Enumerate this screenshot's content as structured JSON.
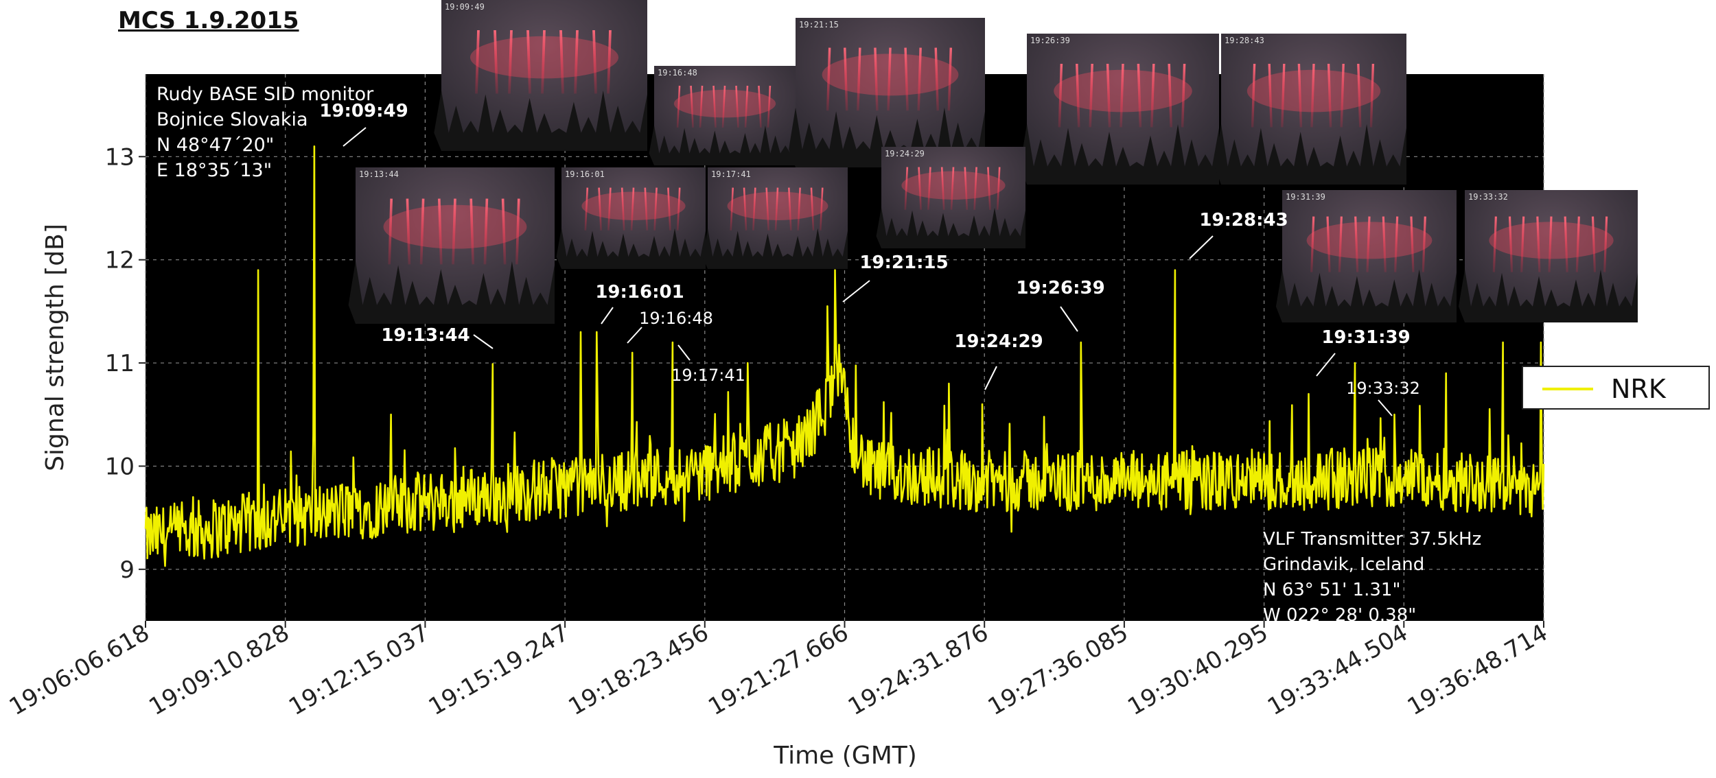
{
  "page_title": "MCS 1.9.2015",
  "chart_data": {
    "type": "line",
    "xlabel": "Time (GMT)",
    "ylabel": "Signal strength [dB]",
    "ylim": [
      8.5,
      13.8
    ],
    "yticks": [
      9,
      10,
      11,
      12,
      13
    ],
    "x_range": [
      "19:06:06.618",
      "19:36:48.714"
    ],
    "xticks": [
      "19:06:06.618",
      "19:09:10.828",
      "19:12:15.037",
      "19:15:19.247",
      "19:18:23.456",
      "19:21:27.666",
      "19:24:31.876",
      "19:27:36.085",
      "19:30:40.295",
      "19:33:44.504",
      "19:36:48.714"
    ],
    "grid": true,
    "legend_position": "right",
    "background": "#000000",
    "series": [
      {
        "name": "NRK",
        "color": "#f0f000",
        "baseline": [
          [
            "19:06:06.618",
            9.3
          ],
          [
            "19:09:10.828",
            9.5
          ],
          [
            "19:12:15.037",
            9.65
          ],
          [
            "19:15:19.247",
            9.8
          ],
          [
            "19:18:23.456",
            9.95
          ],
          [
            "19:20:30.000",
            10.2
          ],
          [
            "19:21:00.000",
            10.55
          ],
          [
            "19:21:20.000",
            10.9
          ],
          [
            "19:21:40.000",
            10.2
          ],
          [
            "19:22:00.000",
            9.95
          ],
          [
            "19:24:31.876",
            9.85
          ],
          [
            "19:27:36.085",
            9.85
          ],
          [
            "19:30:40.295",
            9.85
          ],
          [
            "19:33:44.504",
            9.9
          ],
          [
            "19:36:48.714",
            9.8
          ]
        ],
        "noise_amplitude": 0.3,
        "spikes": [
          [
            "19:09:49",
            13.1
          ],
          [
            "19:08:35",
            11.9
          ],
          [
            "19:13:44",
            10.99
          ],
          [
            "19:16:01",
            11.3
          ],
          [
            "19:16:48",
            11.1
          ],
          [
            "19:17:41",
            11.2
          ],
          [
            "19:15:40",
            11.3
          ],
          [
            "19:21:15",
            11.9
          ],
          [
            "19:21:05",
            11.55
          ],
          [
            "19:24:29",
            10.6
          ],
          [
            "19:23:45",
            10.8
          ],
          [
            "19:26:39",
            11.2
          ],
          [
            "19:28:43",
            11.9
          ],
          [
            "19:31:39",
            10.7
          ],
          [
            "19:33:32",
            10.5
          ],
          [
            "19:35:55",
            11.2
          ],
          [
            "19:36:45",
            11.2
          ],
          [
            "19:32:40",
            11.0
          ],
          [
            "19:34:40",
            10.9
          ],
          [
            "19:11:30",
            10.5
          ],
          [
            "19:19:20",
            11.0
          ]
        ]
      }
    ]
  },
  "station_info": {
    "lines": [
      "Rudy BASE SID monitor",
      "Bojnice Slovakia",
      "N 48°47´20\"",
      "E 18°35´13\""
    ]
  },
  "transmitter_info": {
    "lines": [
      "VLF Transmitter 37.5kHz",
      "Grindavik, Iceland",
      "N 63° 51' 1.31\"",
      "W 022° 28' 0.38\""
    ]
  },
  "event_labels": [
    {
      "text": "19:09:49",
      "time": "19:09:49",
      "style": "bold"
    },
    {
      "text": "19:13:44",
      "time": "19:13:44",
      "style": "bold"
    },
    {
      "text": "19:16:01",
      "time": "19:16:01",
      "style": "bold"
    },
    {
      "text": "19:16:48",
      "time": "19:16:48",
      "style": "normal"
    },
    {
      "text": "19:17:41",
      "time": "19:17:41",
      "style": "normal"
    },
    {
      "text": "19:21:15",
      "time": "19:21:15",
      "style": "bold"
    },
    {
      "text": "19:24:29",
      "time": "19:24:29",
      "style": "bold"
    },
    {
      "text": "19:26:39",
      "time": "19:26:39",
      "style": "bold"
    },
    {
      "text": "19:28:43",
      "time": "19:28:43",
      "style": "bold"
    },
    {
      "text": "19:31:39",
      "time": "19:31:39",
      "style": "bold"
    },
    {
      "text": "19:33:32",
      "time": "19:33:32",
      "style": "normal"
    }
  ],
  "photo_timestamps": [
    "19:09:49",
    "19:16:48",
    "19:21:15",
    "19:26:39",
    "19:28:43",
    "19:13:44",
    "19:16:01",
    "19:17:41",
    "19:24:29",
    "19:31:39",
    "19:33:32"
  ],
  "legend": {
    "label": "NRK"
  },
  "colors": {
    "signal": "#f0f000",
    "plot_bg": "#000000",
    "grid": "#8a8a8a",
    "sprite": "#ff4a60",
    "tree": "#141414"
  }
}
